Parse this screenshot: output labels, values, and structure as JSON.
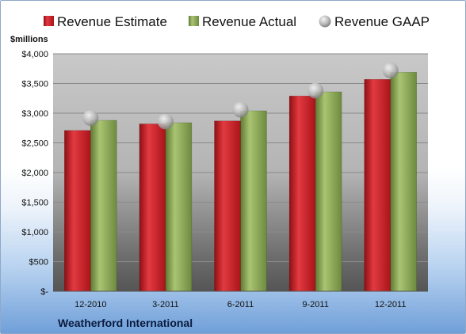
{
  "chart_data": {
    "type": "bar",
    "title": "",
    "xlabel": "",
    "ylabel": "$millions",
    "company": "Weatherford International",
    "categories": [
      "12-2010",
      "3-2011",
      "6-2011",
      "9-2011",
      "12-2011"
    ],
    "series": [
      {
        "name": "Revenue Estimate",
        "kind": "bar",
        "color": "#cc2027",
        "values": [
          2710,
          2820,
          2870,
          3290,
          3570
        ]
      },
      {
        "name": "Revenue Actual",
        "kind": "bar",
        "color": "#8fae5a",
        "values": [
          2880,
          2840,
          3040,
          3360,
          3690
        ]
      },
      {
        "name": "Revenue GAAP",
        "kind": "marker",
        "color": "#b8b8b8",
        "values": [
          2920,
          2860,
          3060,
          3380,
          3720
        ]
      }
    ],
    "ylim": [
      0,
      4000
    ],
    "yticks": [
      0,
      500,
      1000,
      1500,
      2000,
      2500,
      3000,
      3500,
      4000
    ],
    "ytick_labels": [
      "$-",
      "$500",
      "$1,000",
      "$1,500",
      "$2,000",
      "$2,500",
      "$3,000",
      "$3,500",
      "$4,000"
    ],
    "grid": true,
    "legend_position": "top"
  }
}
